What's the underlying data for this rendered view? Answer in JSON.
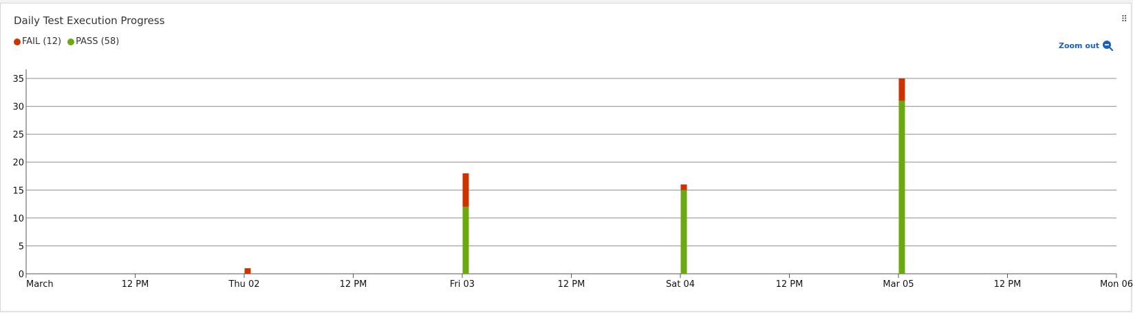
{
  "panel": {
    "title": "Daily Test Execution Progress",
    "zoom_out_label": "Zoom out"
  },
  "legend": [
    {
      "label": "FAIL (12)",
      "color": "#cc3300"
    },
    {
      "label": "PASS (58)",
      "color": "#6aaa10"
    }
  ],
  "chart_data": {
    "type": "bar",
    "stacked": true,
    "title": "Daily Test Execution Progress",
    "x_tick_labels": [
      "March",
      "12 PM",
      "Thu 02",
      "12 PM",
      "Fri 03",
      "12 PM",
      "Sat 04",
      "12 PM",
      "Mar 05",
      "12 PM",
      "Mon 06"
    ],
    "x_ticks_days": [
      0,
      0.5,
      1,
      1.5,
      2,
      2.5,
      3,
      3.5,
      4,
      4.5,
      5
    ],
    "xlim_days": [
      0,
      5
    ],
    "y_ticks": [
      0,
      5,
      10,
      15,
      20,
      25,
      30,
      35
    ],
    "ylim": [
      0,
      36
    ],
    "grid": true,
    "legend_position": "top-left",
    "categories": [
      "Thu 02",
      "Fri 03",
      "Sat 04",
      "Mar 05"
    ],
    "category_days": [
      1,
      2,
      3,
      4
    ],
    "series": [
      {
        "name": "PASS",
        "color": "#6aaa10",
        "values": [
          0,
          12,
          15,
          31
        ]
      },
      {
        "name": "FAIL",
        "color": "#cc3300",
        "values": [
          1,
          6,
          1,
          4
        ]
      }
    ]
  }
}
